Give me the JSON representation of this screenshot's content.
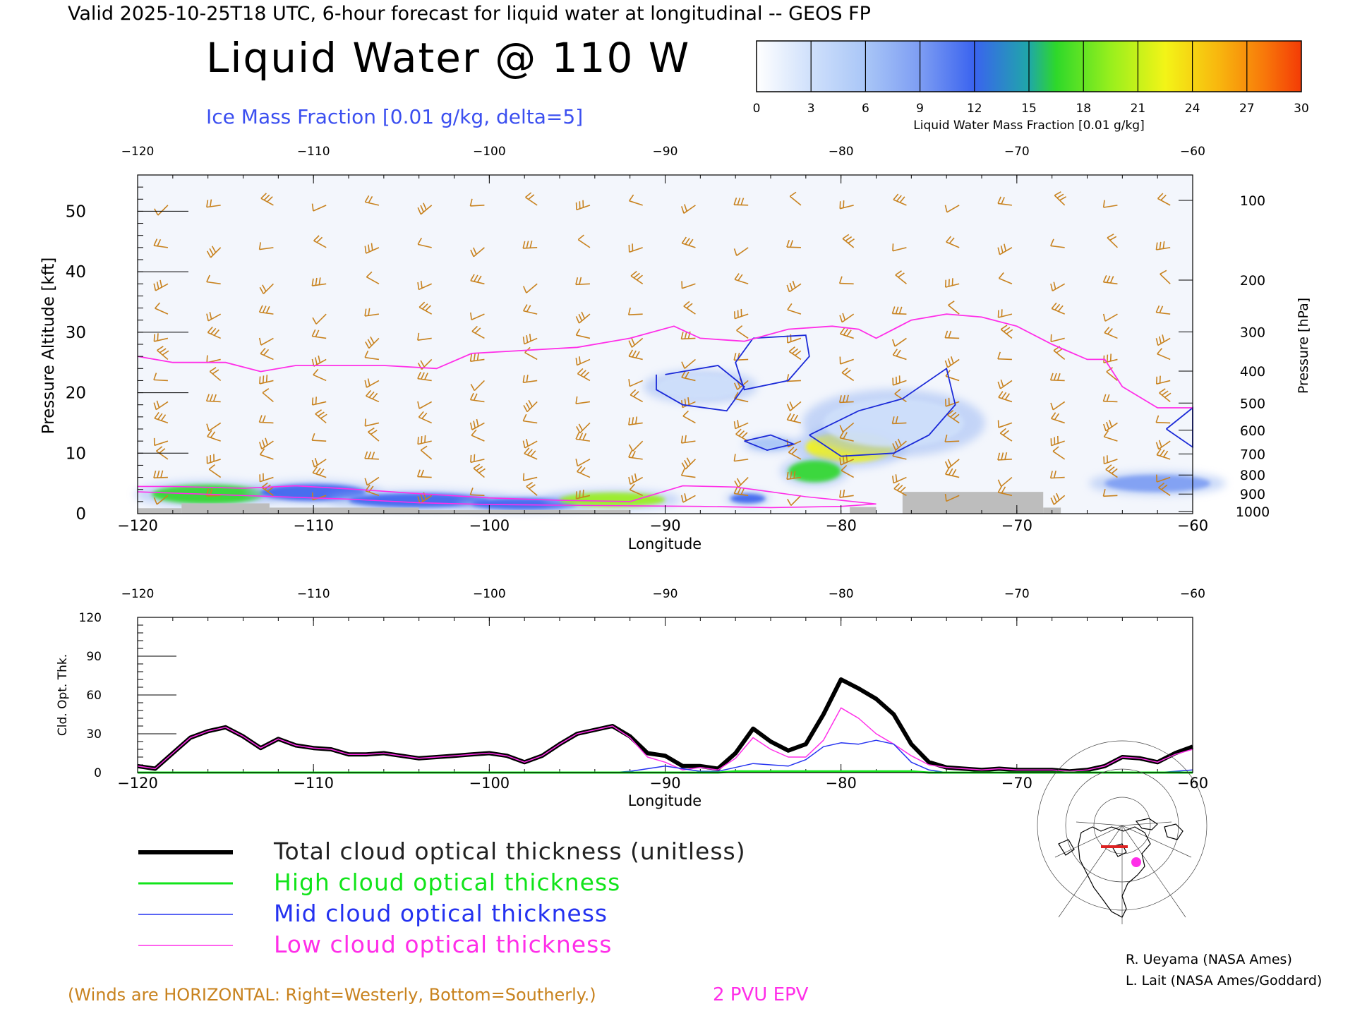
{
  "header": {
    "valid_line": "Valid 2025-10-25T18 UTC, 6-hour forecast for liquid water at longitudinal -- GEOS FP",
    "title": "Liquid Water @ 110 W",
    "subtitle": "Ice Mass Fraction [0.01 g/kg, delta=5]"
  },
  "colorbar": {
    "label": "Liquid Water Mass Fraction [0.01 g/kg]",
    "ticks": [
      "0",
      "3",
      "6",
      "9",
      "12",
      "15",
      "18",
      "21",
      "24",
      "27",
      "30"
    ],
    "colors": [
      "#f4f7fd",
      "#cfe0fb",
      "#a9c6f7",
      "#7d9df3",
      "#3a63ef",
      "#1fa7a8",
      "#2ed82a",
      "#98ef1d",
      "#f3f417",
      "#f8b50e",
      "#f87a0a",
      "#f43b06"
    ]
  },
  "chart_data": [
    {
      "type": "heatmap",
      "xlabel": "Longitude",
      "ylabel": "Pressure Altitude [kft]",
      "y2label": "Pressure [hPa]",
      "xlim": [
        -120,
        -60
      ],
      "ylim": [
        0,
        56
      ],
      "x_ticks": [
        "-120",
        "-110",
        "-100",
        "-90",
        "-80",
        "-70",
        "-60"
      ],
      "y_ticks": [
        "0",
        "10",
        "20",
        "30",
        "40",
        "50"
      ],
      "pressure_ticks": [
        "100",
        "200",
        "300",
        "400",
        "500",
        "600",
        "700",
        "800",
        "900",
        "1000"
      ],
      "pressure_levels": [
        100,
        200,
        300,
        400,
        500,
        600,
        700,
        800,
        900,
        1000
      ],
      "liquid_water_blobs": [
        {
          "x": -116,
          "y": 3.2,
          "rx": 3.2,
          "ry": 1.6,
          "value": 16
        },
        {
          "x": -110,
          "y": 3.5,
          "rx": 3.0,
          "ry": 1.4,
          "value": 10
        },
        {
          "x": -104,
          "y": 2.2,
          "rx": 4.0,
          "ry": 1.2,
          "value": 12
        },
        {
          "x": -98,
          "y": 1.6,
          "rx": 3.0,
          "ry": 1.0,
          "value": 10
        },
        {
          "x": -93,
          "y": 2.3,
          "rx": 3.0,
          "ry": 1.2,
          "value": 18
        },
        {
          "x": -85.3,
          "y": 2.5,
          "rx": 1.0,
          "ry": 0.8,
          "value": 11
        },
        {
          "x": -79.5,
          "y": 11.0,
          "rx": 2.5,
          "ry": 2.5,
          "value": 21
        },
        {
          "x": -81.5,
          "y": 7.0,
          "rx": 1.5,
          "ry": 1.8,
          "value": 15
        },
        {
          "x": -84,
          "y": 11.5,
          "rx": 1.2,
          "ry": 1.0,
          "value": 6
        },
        {
          "x": -77,
          "y": 15.0,
          "rx": 4.0,
          "ry": 4.0,
          "value": 4
        },
        {
          "x": -62,
          "y": 5.0,
          "rx": 3.0,
          "ry": 1.4,
          "value": 7
        },
        {
          "x": -88,
          "y": 21.0,
          "rx": 2.5,
          "ry": 2.0,
          "value": 2
        }
      ],
      "epv_2pvu": {
        "x": [
          -120,
          -118,
          -115,
          -113,
          -111,
          -109,
          -106,
          -103,
          -101,
          -98,
          -95,
          -92,
          -89.5,
          -88,
          -85.5,
          -83,
          -80.5,
          -79,
          -78,
          -76,
          -74,
          -72,
          -70,
          -68,
          -66,
          -65,
          -64,
          -62,
          -60
        ],
        "y": [
          26,
          25,
          25,
          23.5,
          24.5,
          24.5,
          24.5,
          24,
          26.5,
          27,
          27.5,
          29,
          31,
          29,
          28.5,
          30.5,
          31,
          30.5,
          29,
          32,
          33,
          32.5,
          31,
          28,
          25.5,
          25.5,
          21,
          17.5,
          17.5
        ]
      },
      "ice_contours": [
        {
          "x": [
            -90,
            -87,
            -85.5,
            -86.5,
            -89,
            -90.5,
            -90.5
          ],
          "y": [
            23,
            24.5,
            21,
            17,
            18,
            20.5,
            23
          ]
        },
        {
          "x": [
            -85,
            -82,
            -81.8,
            -83,
            -85.5,
            -86,
            -85
          ],
          "y": [
            29,
            29.5,
            26,
            22,
            20.5,
            25,
            29
          ]
        },
        {
          "x": [
            -85.5,
            -84,
            -82.7,
            -84.2,
            -85.5
          ],
          "y": [
            12,
            13,
            11.5,
            10.5,
            12
          ]
        },
        {
          "x": [
            -81.8,
            -79,
            -76.5,
            -74,
            -73.5,
            -75,
            -77,
            -80,
            -81.8
          ],
          "y": [
            13,
            17,
            19,
            24,
            18,
            13,
            10,
            9.5,
            13
          ]
        },
        {
          "x": [
            -61.5,
            -60,
            -60,
            -61.5
          ],
          "y": [
            14,
            17.5,
            11,
            14
          ]
        }
      ],
      "wind_barb_lons": [
        -119,
        -116,
        -113,
        -110,
        -107,
        -104,
        -101,
        -98,
        -95,
        -92,
        -89,
        -86,
        -83,
        -80,
        -77,
        -74,
        -71,
        -68,
        -65,
        -62
      ],
      "wind_barb_levels": [
        51,
        44,
        38,
        33,
        29,
        25.5,
        22,
        18.5,
        15,
        12,
        9,
        6,
        3
      ]
    },
    {
      "type": "line",
      "xlabel": "Longitude",
      "ylabel": "Cld. Opt. Thk.",
      "xlim": [
        -120,
        -60
      ],
      "ylim": [
        0,
        120
      ],
      "x_ticks": [
        "-120",
        "-110",
        "-100",
        "-90",
        "-80",
        "-70",
        "-60"
      ],
      "y_ticks": [
        "0",
        "30",
        "60",
        "90",
        "120"
      ],
      "x": [
        -120,
        -119,
        -118,
        -117,
        -116,
        -115,
        -114,
        -113,
        -112,
        -111,
        -110,
        -109,
        -108,
        -107,
        -106,
        -105,
        -104,
        -103,
        -102,
        -101,
        -100,
        -99,
        -98,
        -97,
        -96,
        -95,
        -94,
        -93,
        -92,
        -91,
        -90,
        -89,
        -88,
        -87,
        -86,
        -85,
        -84,
        -83,
        -82,
        -81,
        -80,
        -79,
        -78,
        -77,
        -76,
        -75,
        -74,
        -73,
        -72,
        -71,
        -70,
        -69,
        -68,
        -67,
        -66,
        -65,
        -64,
        -63,
        -62,
        -61,
        -60
      ],
      "series": [
        {
          "name": "Total cloud optical thickness (unitless)",
          "color": "#000000",
          "width": 6,
          "values": [
            5,
            3,
            15,
            27,
            32,
            35,
            28,
            19,
            26,
            21,
            19,
            18,
            14,
            14,
            15,
            13,
            11,
            12,
            13,
            14,
            15,
            13,
            8,
            13,
            22,
            30,
            33,
            36,
            28,
            15,
            13,
            5,
            5,
            3,
            15,
            34,
            24,
            17,
            22,
            45,
            72,
            65,
            57,
            45,
            22,
            8,
            4,
            3,
            2,
            3,
            2,
            2,
            2,
            1,
            2,
            5,
            12,
            11,
            8,
            15,
            20
          ]
        },
        {
          "name": "High cloud optical thickness",
          "color": "#11e41a",
          "width": 3,
          "values": [
            0,
            0,
            0,
            0,
            0,
            0,
            0,
            0,
            0,
            0,
            0,
            0,
            0,
            0,
            0,
            0,
            0,
            0,
            0,
            0,
            0,
            0,
            0,
            0,
            0,
            0,
            0,
            0,
            0,
            0,
            0,
            0,
            0,
            0,
            1,
            1,
            1,
            1,
            1,
            1,
            1,
            1,
            1,
            1,
            1,
            0,
            0,
            0,
            0,
            0,
            0,
            0,
            0,
            0,
            0,
            0,
            0,
            0,
            0,
            0,
            0
          ]
        },
        {
          "name": "Mid cloud optical thickness",
          "color": "#2432f0",
          "width": 1.5,
          "values": [
            0,
            0,
            0,
            0,
            0,
            0,
            0,
            0,
            0,
            0,
            0,
            0,
            0,
            0,
            0,
            0,
            0,
            0,
            0,
            0,
            0,
            0,
            0,
            0,
            0,
            0,
            0,
            0,
            1,
            3,
            5,
            3,
            1,
            1,
            4,
            7,
            6,
            5,
            10,
            20,
            23,
            22,
            25,
            22,
            8,
            2,
            0,
            0,
            0,
            0,
            0,
            0,
            0,
            0,
            0,
            0,
            0,
            0,
            0,
            1,
            2
          ]
        },
        {
          "name": "Low cloud optical thickness",
          "color": "#ff2ee8",
          "width": 1.5,
          "values": [
            5,
            3,
            15,
            27,
            32,
            35,
            28,
            19,
            26,
            21,
            19,
            18,
            14,
            14,
            15,
            13,
            11,
            12,
            13,
            14,
            15,
            13,
            8,
            13,
            22,
            30,
            33,
            36,
            27,
            12,
            8,
            2,
            4,
            2,
            11,
            27,
            18,
            12,
            12,
            25,
            50,
            42,
            30,
            22,
            13,
            6,
            4,
            3,
            2,
            3,
            2,
            2,
            2,
            1,
            2,
            5,
            12,
            11,
            8,
            14,
            18
          ]
        }
      ]
    }
  ],
  "legend": {
    "entries": [
      {
        "label": "Total cloud optical thickness (unitless)",
        "color": "#000000",
        "width": 6
      },
      {
        "label": "High cloud optical thickness",
        "color": "#11e41a",
        "width": 3
      },
      {
        "label": "Mid cloud optical thickness",
        "color": "#2432f0",
        "width": 1.5
      },
      {
        "label": "Low cloud optical thickness",
        "color": "#ff2ee8",
        "width": 1.5
      }
    ]
  },
  "footer": {
    "winds_note": "(Winds are HORIZONTAL: Right=Westerly, Bottom=Southerly.)",
    "epv_label": "2 PVU EPV",
    "credit1": "R. Ueyama (NASA Ames)",
    "credit2": "L. Lait (NASA Ames/Goddard)"
  },
  "colors": {
    "wind": "#c8821e",
    "epv": "#ff2ee8",
    "ice": "#1b2ad8",
    "terrain": "#bdbdbd",
    "subtitle": "#3b4ff0"
  }
}
